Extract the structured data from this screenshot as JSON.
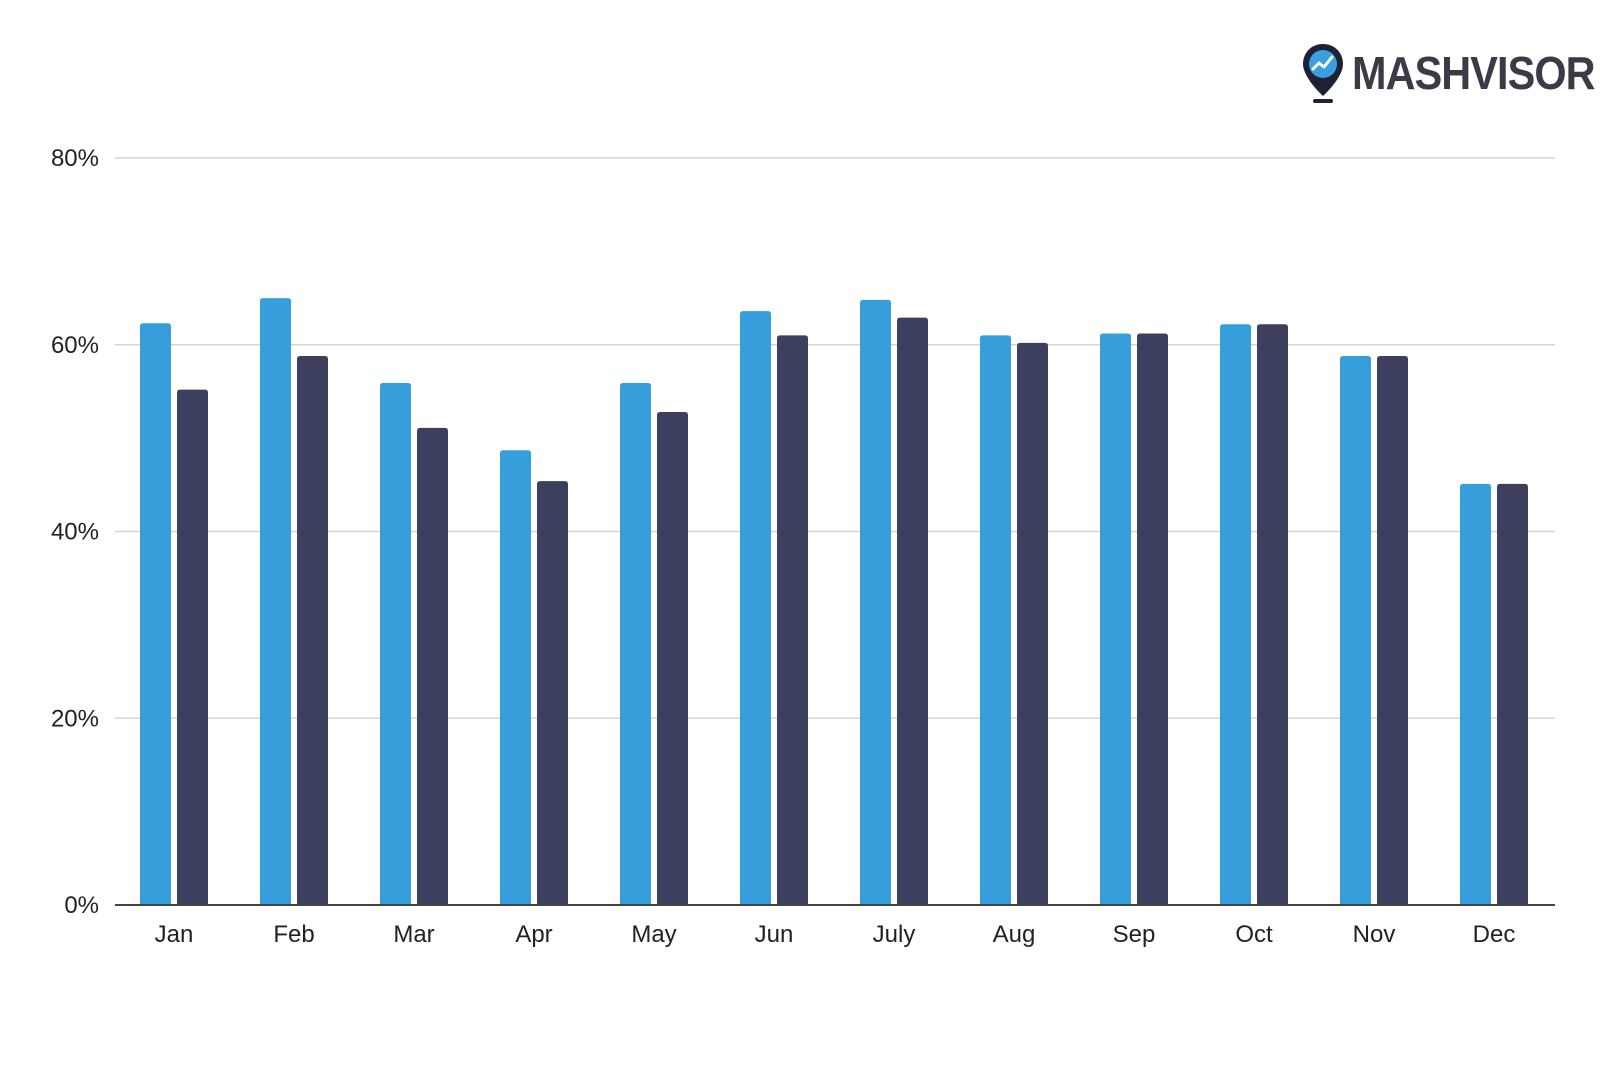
{
  "brand": {
    "name": "MASHVISOR",
    "icon": "map-pin-chart-icon",
    "pin_color": "#1f2235",
    "accent_color": "#3a9ee0"
  },
  "chart_data": {
    "type": "bar",
    "categories": [
      "Jan",
      "Feb",
      "Mar",
      "Apr",
      "May",
      "Jun",
      "July",
      "Aug",
      "Sep",
      "Oct",
      "Nov",
      "Dec"
    ],
    "series": [
      {
        "color": "#359edb",
        "values": [
          62.3,
          65.0,
          55.9,
          48.7,
          55.9,
          63.6,
          64.8,
          61.0,
          61.2,
          62.2,
          58.8,
          45.1
        ]
      },
      {
        "color": "#3c3f5e",
        "values": [
          55.2,
          58.8,
          51.1,
          45.4,
          52.8,
          61.0,
          62.9,
          60.2,
          61.2,
          62.2,
          58.8,
          45.1
        ]
      }
    ],
    "ylim": [
      0,
      80
    ],
    "yticks": [
      0,
      20,
      40,
      60,
      80
    ],
    "ytick_labels": [
      "0%",
      "20%",
      "40%",
      "60%",
      "80%"
    ],
    "grid": true,
    "legend": "none",
    "title": "",
    "xlabel": "",
    "ylabel": ""
  }
}
